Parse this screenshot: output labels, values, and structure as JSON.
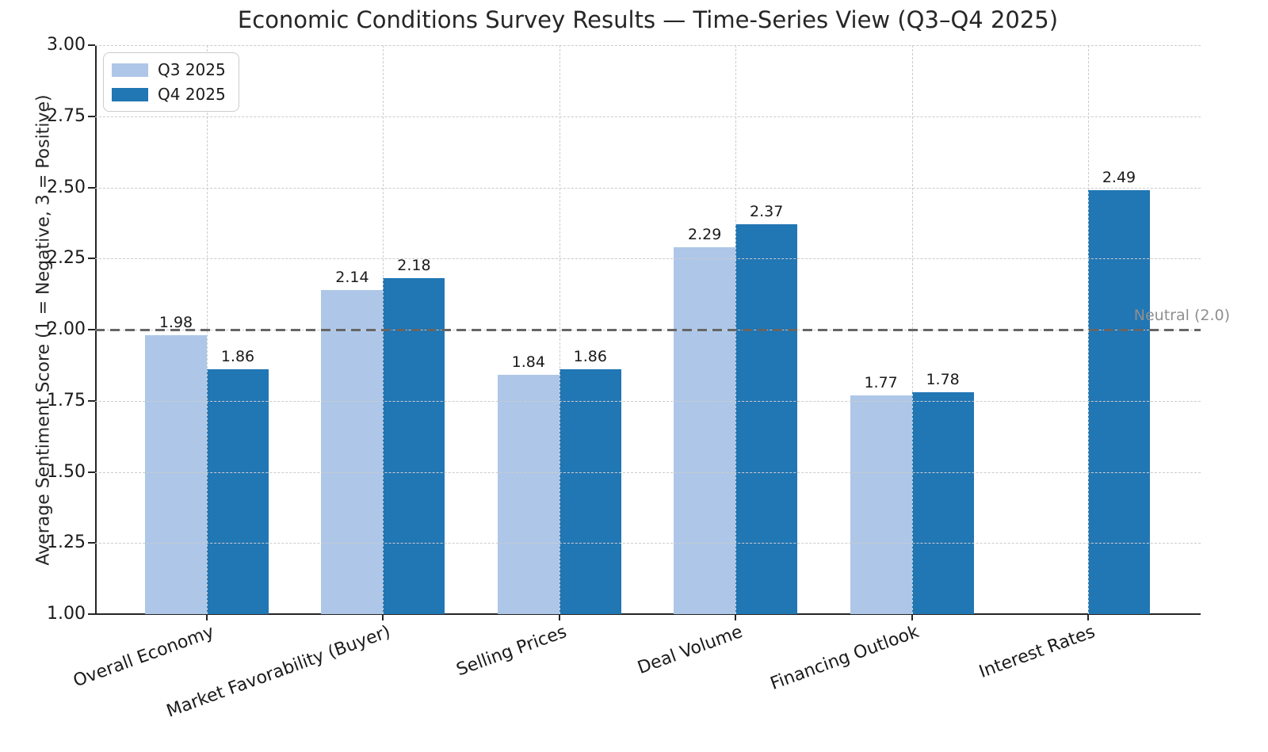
{
  "chart_data": {
    "type": "bar",
    "title": "Economic Conditions Survey Results — Time-Series View (Q3–Q4 2025)",
    "ylabel": "Average Sentiment Score (1 = Negative, 3 = Positive)",
    "xlabel": "",
    "ylim": [
      1.0,
      3.0
    ],
    "yticks": [
      1.0,
      1.25,
      1.5,
      1.75,
      2.0,
      2.25,
      2.5,
      2.75,
      3.0
    ],
    "ytick_labels": [
      "1.00",
      "1.25",
      "1.50",
      "1.75",
      "2.00",
      "2.25",
      "2.50",
      "2.75",
      "3.00"
    ],
    "categories": [
      "Overall Economy",
      "Market Favorability (Buyer)",
      "Selling Prices",
      "Deal Volume",
      "Financing Outlook",
      "Interest Rates"
    ],
    "series": [
      {
        "name": "Q3 2025",
        "color": "#aec7e8",
        "values": [
          1.98,
          2.14,
          1.84,
          2.29,
          1.77,
          null
        ]
      },
      {
        "name": "Q4 2025",
        "color": "#2176b4",
        "values": [
          1.86,
          2.18,
          1.86,
          2.37,
          1.78,
          2.49
        ]
      }
    ],
    "bar_value_labels": {
      "Q3 2025": [
        "1.98",
        "2.14",
        "1.84",
        "2.29",
        "1.77",
        null
      ],
      "Q4 2025": [
        "1.86",
        "2.18",
        "1.86",
        "2.37",
        "1.78",
        "2.49"
      ]
    },
    "reference_line": {
      "value": 2.0,
      "label": "Neutral (2.0)",
      "line_color": "#666666",
      "label_color": "#8f8f8f",
      "style": "dashed"
    },
    "legend": {
      "position": "upper left"
    },
    "grid": true,
    "grid_style": "dashed",
    "grid_color": "#cccccc",
    "x_tick_rotation_deg": 20,
    "background_color": "#ffffff",
    "value_label_format": "2-decimals"
  }
}
